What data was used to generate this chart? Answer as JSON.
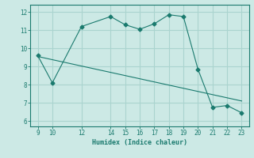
{
  "title": "",
  "xlabel": "Humidex (Indice chaleur)",
  "ylabel": "",
  "bg_color": "#cce9e5",
  "line_color": "#1a7a6e",
  "grid_color": "#aad4cf",
  "xlim": [
    8.5,
    23.5
  ],
  "ylim": [
    5.7,
    12.4
  ],
  "xticks": [
    9,
    10,
    12,
    14,
    15,
    16,
    17,
    18,
    19,
    20,
    21,
    22,
    23
  ],
  "yticks": [
    6,
    7,
    8,
    9,
    10,
    11,
    12
  ],
  "main_x": [
    9,
    10,
    12,
    14,
    15,
    16,
    17,
    18,
    19,
    20,
    21,
    22,
    23
  ],
  "main_y": [
    9.6,
    8.1,
    11.2,
    11.75,
    11.3,
    11.05,
    11.35,
    11.85,
    11.75,
    8.85,
    6.75,
    6.85,
    6.45
  ],
  "trend_x": [
    9,
    23
  ],
  "trend_y": [
    9.55,
    7.1
  ]
}
